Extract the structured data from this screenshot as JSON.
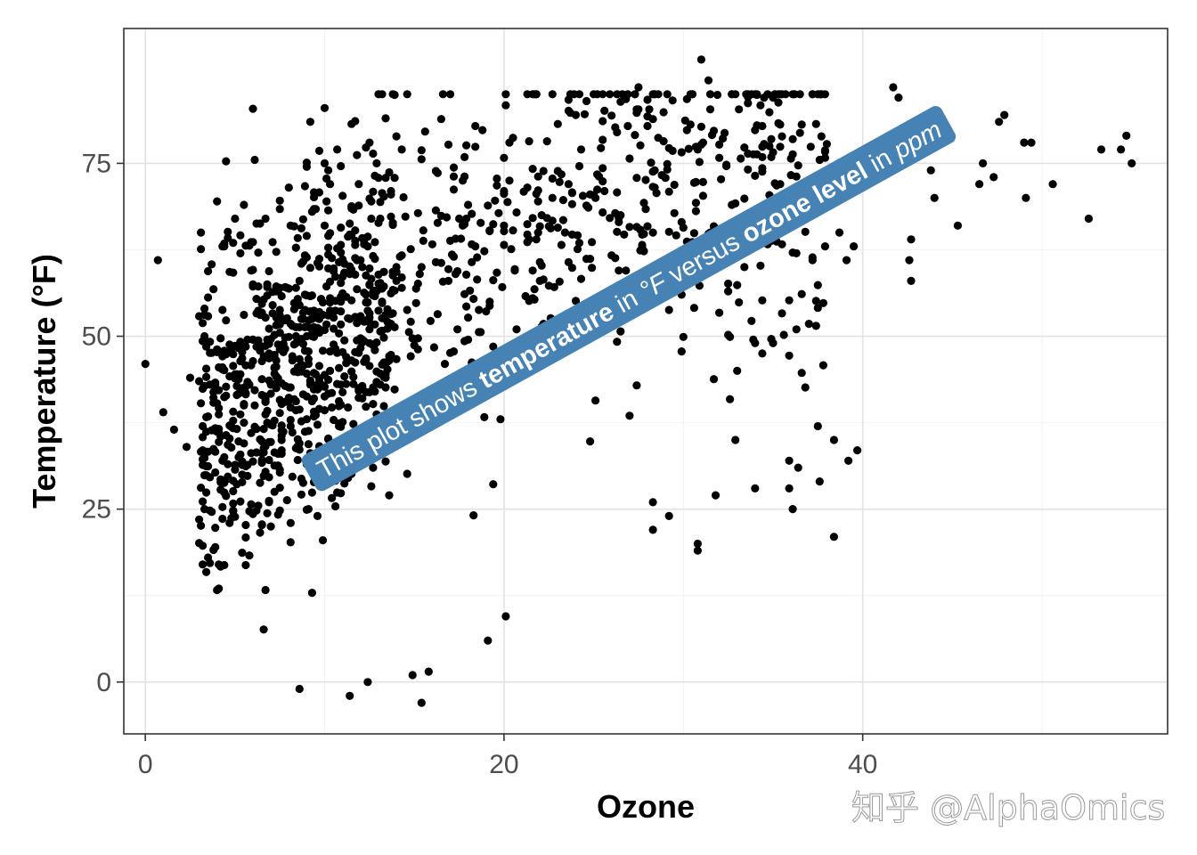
{
  "chart_data": {
    "type": "scatter",
    "xlabel": "Ozone",
    "ylabel": "Temperature (°F)",
    "xlim": [
      -1.2,
      57.0
    ],
    "ylim": [
      -7.5,
      94.5
    ],
    "x_ticks": [
      0,
      20,
      40
    ],
    "y_ticks": [
      0,
      25,
      50,
      75
    ],
    "grid": true,
    "point_color": "#000000",
    "annotation": {
      "segments": [
        {
          "text": "This plot shows ",
          "weight": "normal",
          "style": "normal"
        },
        {
          "text": "temperature",
          "weight": "bold",
          "style": "normal"
        },
        {
          "text": " in ",
          "weight": "normal",
          "style": "normal"
        },
        {
          "text": "°F",
          "weight": "normal",
          "style": "italic"
        },
        {
          "text": " versus ",
          "weight": "normal",
          "style": "normal"
        },
        {
          "text": "ozone level",
          "weight": "bold",
          "style": "normal"
        },
        {
          "text": " in ",
          "weight": "normal",
          "style": "normal"
        },
        {
          "text": "ppm",
          "weight": "normal",
          "style": "italic"
        }
      ],
      "x": 9.4,
      "y": 28.6,
      "angle_deg": -29,
      "background": "#4682b4"
    },
    "outlier_points": [
      [
        0.0,
        46
      ],
      [
        0.7,
        61
      ],
      [
        1.0,
        39
      ],
      [
        1.6,
        36.5
      ],
      [
        2.3,
        34
      ],
      [
        2.5,
        44
      ],
      [
        3.1,
        65
      ],
      [
        3.3,
        25
      ],
      [
        3.2,
        17
      ],
      [
        4.0,
        69.5
      ],
      [
        4.1,
        17
      ],
      [
        5.0,
        67
      ],
      [
        4.4,
        63
      ],
      [
        10.0,
        75
      ],
      [
        12.5,
        78
      ],
      [
        14.3,
        77
      ],
      [
        12.9,
        75
      ],
      [
        15.4,
        -3
      ],
      [
        11.4,
        -2
      ],
      [
        8.6,
        -1
      ],
      [
        12.4,
        0
      ],
      [
        14.9,
        1
      ],
      [
        15.8,
        1.5
      ],
      [
        20.1,
        9.5
      ],
      [
        19.1,
        6
      ],
      [
        31.0,
        90
      ],
      [
        31.4,
        87
      ],
      [
        27.5,
        86
      ],
      [
        41.7,
        86
      ],
      [
        42.0,
        84.5
      ],
      [
        42.3,
        80
      ],
      [
        44.3,
        80
      ],
      [
        47.9,
        82
      ],
      [
        47.6,
        81
      ],
      [
        49.4,
        78
      ],
      [
        49.0,
        78
      ],
      [
        46.7,
        75
      ],
      [
        47.3,
        73
      ],
      [
        46.5,
        72
      ],
      [
        50.6,
        72
      ],
      [
        49.1,
        70
      ],
      [
        52.6,
        67
      ],
      [
        53.3,
        77
      ],
      [
        54.4,
        77
      ],
      [
        54.7,
        79
      ],
      [
        55.0,
        75
      ],
      [
        43.8,
        74
      ],
      [
        44.0,
        70
      ],
      [
        42.7,
        64
      ],
      [
        42.6,
        61
      ],
      [
        42.7,
        58
      ],
      [
        45.3,
        66
      ],
      [
        39.7,
        33.5
      ],
      [
        39.2,
        32
      ],
      [
        38.4,
        35
      ],
      [
        38.4,
        21
      ],
      [
        37.6,
        29
      ],
      [
        36.1,
        25
      ],
      [
        35.9,
        28
      ],
      [
        35.9,
        32
      ],
      [
        34.0,
        28
      ],
      [
        36.3,
        51
      ],
      [
        35.0,
        49
      ],
      [
        34.0,
        49
      ],
      [
        33.0,
        45
      ],
      [
        32.9,
        35
      ],
      [
        31.8,
        27
      ],
      [
        30.8,
        19
      ],
      [
        30.8,
        20
      ],
      [
        29.2,
        24
      ],
      [
        28.3,
        22
      ],
      [
        28.3,
        26
      ],
      [
        37.5,
        37
      ],
      [
        36.4,
        31
      ],
      [
        39.1,
        61
      ],
      [
        39.5,
        63
      ],
      [
        38.7,
        65
      ]
    ]
  },
  "watermark": "知乎 @AlphaOmics"
}
